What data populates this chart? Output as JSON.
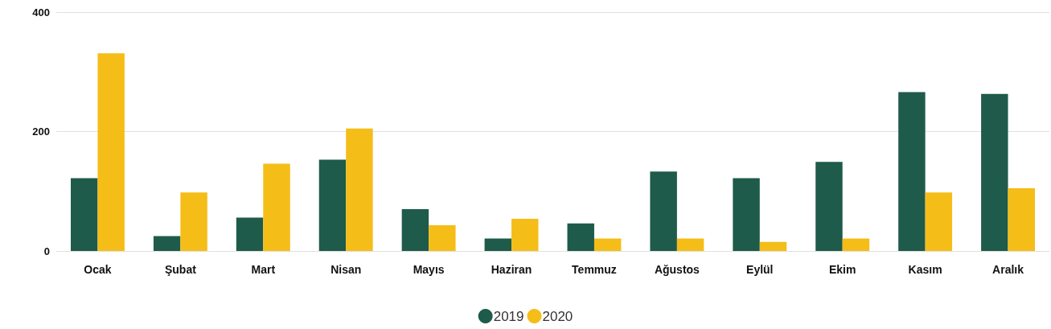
{
  "chart_data": {
    "type": "bar",
    "categories": [
      "Ocak",
      "Şubat",
      "Mart",
      "Nisan",
      "Mayıs",
      "Haziran",
      "Temmuz",
      "Ağustos",
      "Eylül",
      "Ekim",
      "Kasım",
      "Aralık"
    ],
    "series": [
      {
        "name": "2019",
        "color": "#1e5b4a",
        "values": [
          122,
          25,
          56,
          153,
          70,
          21,
          46,
          133,
          122,
          149,
          266,
          263
        ]
      },
      {
        "name": "2020",
        "color": "#f5bd18",
        "values": [
          331,
          98,
          146,
          205,
          43,
          54,
          21,
          21,
          15,
          21,
          98,
          105
        ]
      }
    ],
    "ylim": [
      0,
      400
    ],
    "yticks": [
      0,
      200,
      400
    ],
    "grid": "y",
    "legend": "bottom"
  }
}
